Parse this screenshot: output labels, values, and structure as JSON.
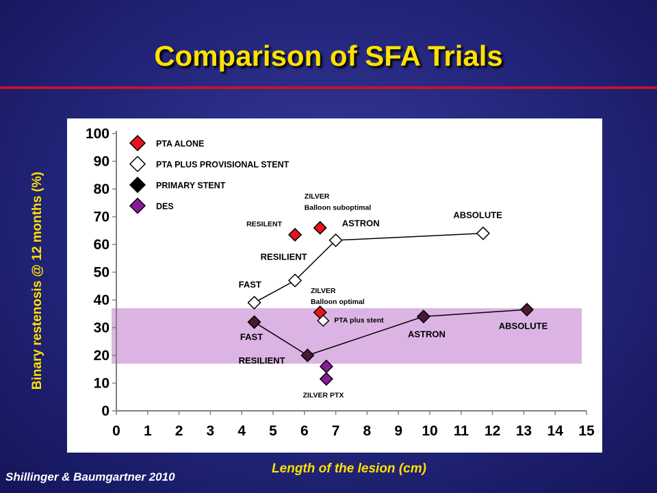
{
  "slide": {
    "title": "Comparison of SFA Trials",
    "citation": "Shillinger & Baumgartner 2010",
    "colors": {
      "title": "#ffe200",
      "rule": "#c8102e",
      "background": "#23257a"
    }
  },
  "chart_data": {
    "type": "scatter",
    "title": "",
    "xlabel": "Length of the lesion (cm)",
    "ylabel": "Binary restenosis @ 12 months (%)",
    "xlim": [
      0,
      15
    ],
    "ylim": [
      0,
      100
    ],
    "xticks": [
      "0",
      "1",
      "2",
      "3",
      "4",
      "5",
      "6",
      "7",
      "8",
      "9",
      "10",
      "11",
      "12",
      "13",
      "14",
      "15"
    ],
    "yticks": [
      "0",
      "10",
      "20",
      "30",
      "40",
      "50",
      "60",
      "70",
      "80",
      "90",
      "100"
    ],
    "grid": false,
    "highlight_band": {
      "y_range": [
        17,
        37
      ],
      "x_range": [
        -0.15,
        14.85
      ],
      "color": "#dcb4e4"
    },
    "legend": [
      {
        "label": "PTA ALONE",
        "marker": "diamond",
        "fill": "#e8141c"
      },
      {
        "label": "PTA PLUS PROVISIONAL STENT",
        "marker": "diamond",
        "fill": "#ffffff"
      },
      {
        "label": "PRIMARY STENT",
        "marker": "diamond",
        "fill": "#000000"
      },
      {
        "label": "DES",
        "marker": "diamond",
        "fill": "#8b1a9a"
      }
    ],
    "series": [
      {
        "name": "PTA ALONE",
        "fill": "#e8141c",
        "connected": false,
        "points": [
          {
            "x": 5.7,
            "y": 63.5
          },
          {
            "x": 6.5,
            "y": 66
          },
          {
            "x": 6.5,
            "y": 35.5
          }
        ]
      },
      {
        "name": "PTA PLUS PROVISIONAL STENT",
        "fill": "#ffffff",
        "connected": true,
        "points": [
          {
            "x": 4.4,
            "y": 39
          },
          {
            "x": 5.7,
            "y": 47
          },
          {
            "x": 7.0,
            "y": 61.5
          },
          {
            "x": 11.7,
            "y": 64
          }
        ],
        "extra_points": [
          {
            "x": 6.6,
            "y": 32.5
          }
        ]
      },
      {
        "name": "PRIMARY STENT",
        "fill": "#4a1a32",
        "connected": true,
        "points": [
          {
            "x": 4.4,
            "y": 32
          },
          {
            "x": 6.1,
            "y": 20
          },
          {
            "x": 9.8,
            "y": 34
          },
          {
            "x": 13.1,
            "y": 36.5
          }
        ]
      },
      {
        "name": "DES",
        "fill": "#8b1a9a",
        "connected": false,
        "points": [
          {
            "x": 6.7,
            "y": 16
          },
          {
            "x": 6.7,
            "y": 11.5
          }
        ]
      }
    ],
    "annotations": [
      {
        "text": "RESILENT",
        "x": 4.15,
        "y": 66.5,
        "size": "small"
      },
      {
        "text": "ZILVER",
        "x": 6.0,
        "y": 76.5,
        "size": "small"
      },
      {
        "text": "Balloon suboptimal",
        "x": 6.0,
        "y": 72.5,
        "size": "small"
      },
      {
        "text": "ASTRON",
        "x": 7.2,
        "y": 66.5,
        "size": "medium"
      },
      {
        "text": "ABSOLUTE",
        "x": 10.75,
        "y": 69.5,
        "size": "medium"
      },
      {
        "text": "RESILIENT",
        "x": 4.6,
        "y": 54.5,
        "size": "medium"
      },
      {
        "text": "FAST",
        "x": 3.9,
        "y": 44.5,
        "size": "medium"
      },
      {
        "text": "ZILVER",
        "x": 6.2,
        "y": 42.5,
        "size": "small"
      },
      {
        "text": "Balloon optimal",
        "x": 6.2,
        "y": 38.5,
        "size": "small"
      },
      {
        "text": "PTA plus stent",
        "x": 6.95,
        "y": 31.8,
        "size": "small"
      },
      {
        "text": "ASTRON",
        "x": 9.3,
        "y": 26.5,
        "size": "medium"
      },
      {
        "text": "ABSOLUTE",
        "x": 12.2,
        "y": 29.5,
        "size": "medium"
      },
      {
        "text": "FAST",
        "x": 3.95,
        "y": 25.5,
        "size": "medium"
      },
      {
        "text": "RESILIENT",
        "x": 3.9,
        "y": 17.0,
        "size": "medium"
      },
      {
        "text": "ZILVER PTX",
        "x": 5.95,
        "y": 4.8,
        "size": "small"
      }
    ]
  }
}
